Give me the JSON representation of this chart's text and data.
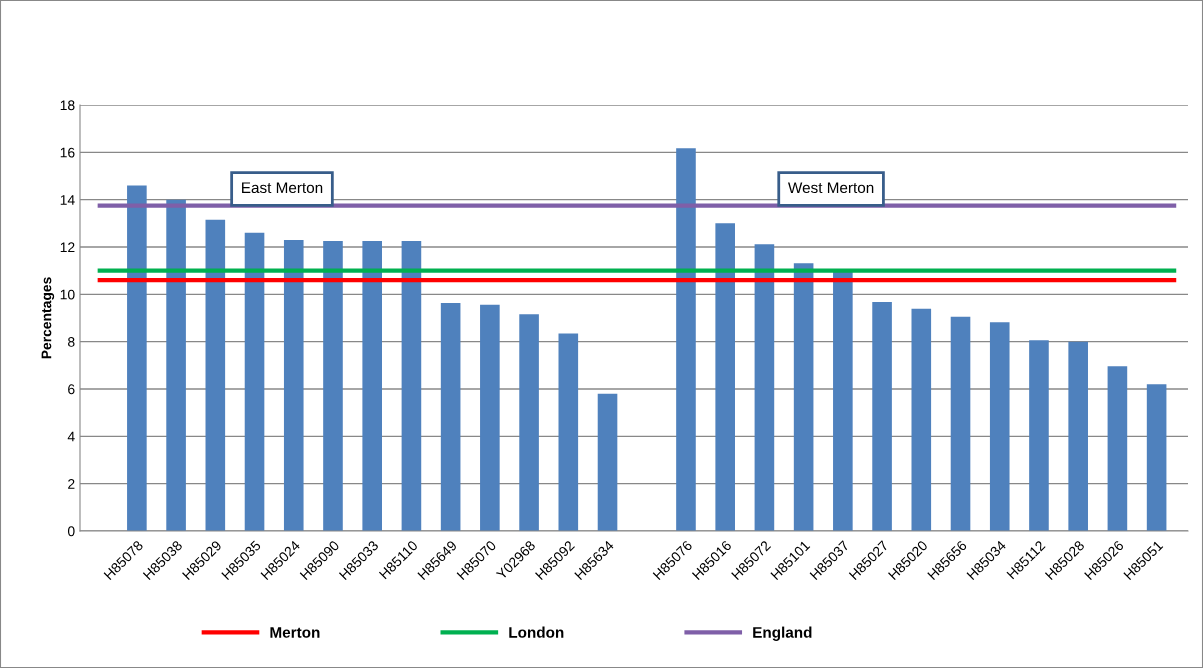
{
  "chart_data": {
    "type": "bar",
    "ylabel": "Percentages",
    "categories": [
      "H85078",
      "H85038",
      "H85029",
      "H85035",
      "H85024",
      "H85090",
      "H85033",
      "H85110",
      "H85649",
      "H85070",
      "Y02968",
      "H85092",
      "H85634",
      null,
      "H85076",
      "H85016",
      "H85072",
      "H85101",
      "H85037",
      "H85027",
      "H85020",
      "H85656",
      "H85034",
      "H85112",
      "H85028",
      "H85026",
      "H85051"
    ],
    "values": [
      14.6,
      14.0,
      13.15,
      12.6,
      12.3,
      12.25,
      12.25,
      12.25,
      9.63,
      9.56,
      9.16,
      8.35,
      5.8,
      null,
      16.17,
      13.0,
      12.12,
      11.31,
      10.98,
      9.68,
      9.39,
      9.05,
      8.82,
      8.06,
      8.0,
      6.96,
      6.2
    ],
    "color": "#4f81bd",
    "ylim": [
      0,
      18
    ],
    "yticks": [
      0,
      2,
      4,
      6,
      8,
      10,
      12,
      14,
      16,
      18
    ],
    "grid": "y",
    "legend": "bottom",
    "ref_lines": [
      {
        "axis": "y",
        "value": 10.6,
        "label": "Merton",
        "color": "#ff0000"
      },
      {
        "axis": "y",
        "value": 11.0,
        "label": "London",
        "color": "#00b050"
      },
      {
        "axis": "y",
        "value": 13.75,
        "label": "England",
        "color": "#7f5fa8"
      }
    ],
    "annotations": [
      "East Merton",
      "West Merton"
    ]
  }
}
